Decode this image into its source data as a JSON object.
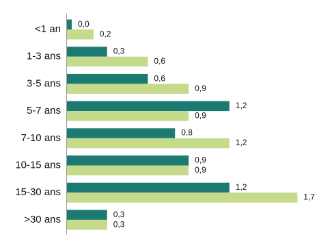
{
  "chart_data": {
    "type": "bar",
    "orientation": "horizontal",
    "categories": [
      "<1 an",
      "1-3 ans",
      "3-5 ans",
      "5-7 ans",
      "7-10 ans",
      "10-15 ans",
      "15-30 ans",
      ">30 ans"
    ],
    "series": [
      {
        "color": "#1d7a72",
        "values": [
          0.0,
          0.3,
          0.6,
          1.2,
          0.8,
          0.9,
          1.2,
          0.3
        ],
        "labels": [
          "0,0",
          "0,3",
          "0,6",
          "1,2",
          "0,8",
          "0,9",
          "1,2",
          "0,3"
        ]
      },
      {
        "color": "#c6da8c",
        "values": [
          0.2,
          0.6,
          0.9,
          0.9,
          1.2,
          0.9,
          1.7,
          0.3
        ],
        "labels": [
          "0,2",
          "0,6",
          "0,9",
          "0,9",
          "1,2",
          "0,9",
          "1,7",
          "0,3"
        ]
      }
    ],
    "xlim": [
      0,
      1.7
    ],
    "grid": false,
    "legend": "none"
  }
}
